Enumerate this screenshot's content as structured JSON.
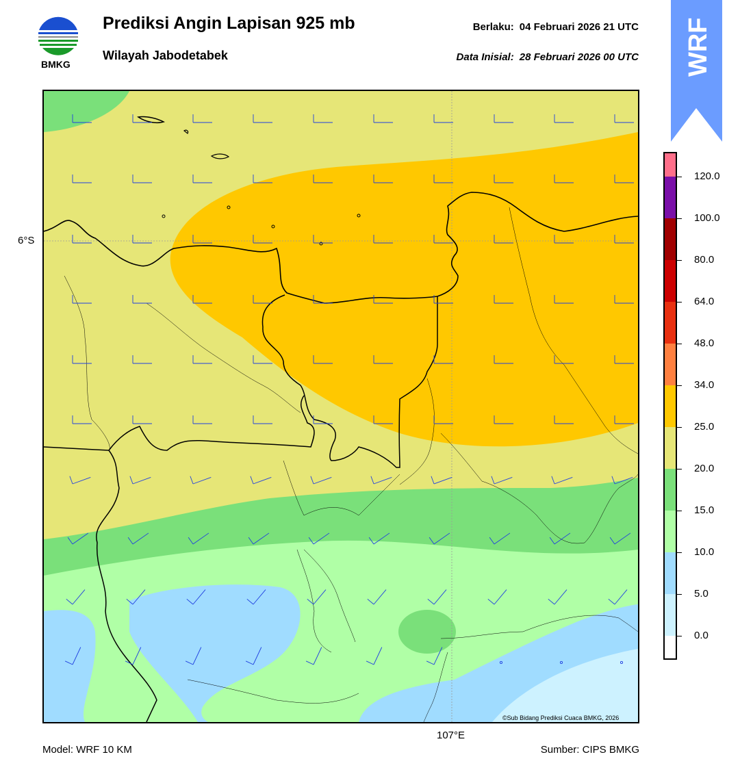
{
  "header": {
    "title": "Prediksi Angin Lapisan 925 mb",
    "subtitle": "Wilayah Jabodetabek",
    "valid_label": "Berlaku:",
    "valid_time": "04 Februari 2026 21 UTC",
    "init_label": "Data Inisial:",
    "init_time": "28 Februari 2026 00 UTC"
  },
  "logo": {
    "text": "BMKG",
    "icon": "bmkg-logo"
  },
  "badge": {
    "text": "WRF",
    "color": "#6b9cff"
  },
  "map": {
    "lat_label": "6°S",
    "lon_label": "107°E",
    "copyright": "©Sub Bidang Prediksi Cuaca BMKG, 2026"
  },
  "footer": {
    "model": "Model: WRF 10 KM",
    "source": "Sumber: CIPS BMKG"
  },
  "colorbar": {
    "labels": [
      "120.0",
      "100.0",
      "80.0",
      "64.0",
      "48.0",
      "34.0",
      "25.0",
      "20.0",
      "15.0",
      "10.0",
      "5.0",
      "0.0"
    ],
    "colors": [
      "#ff6f8a",
      "#7a0fa8",
      "#a00000",
      "#cc0000",
      "#e83010",
      "#ff8040",
      "#ffc800",
      "#e6e677",
      "#7ae07a",
      "#b0ffa6",
      "#a0dcff",
      "#cdf2ff",
      "#ffffff"
    ]
  }
}
